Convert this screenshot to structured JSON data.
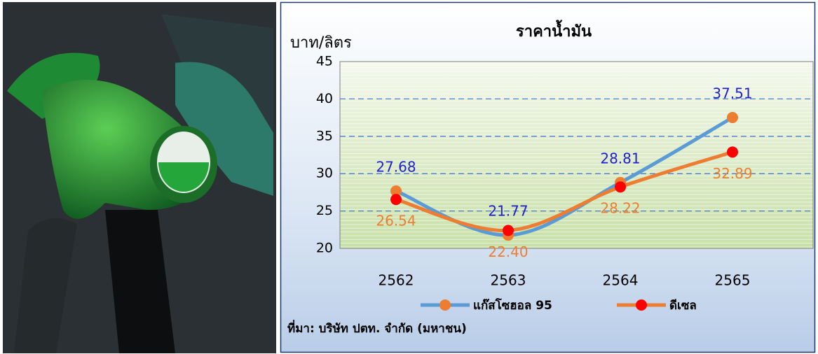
{
  "chart_data": {
    "type": "line",
    "title": "ราคาน้ำมัน",
    "y_label": "บาท/ลิตร",
    "categories": [
      "2562",
      "2563",
      "2564",
      "2565"
    ],
    "series": [
      {
        "name": "แก๊สโซฮอล 95",
        "color": "#5b9bd5",
        "marker_color": "#ed7d31",
        "label_color": "#1f1fd0",
        "values": [
          27.68,
          21.77,
          28.81,
          37.51
        ]
      },
      {
        "name": "ดีเซล",
        "color": "#ed7d31",
        "marker_color": "#ff0000",
        "label_color": "#ed7d31",
        "values": [
          26.54,
          22.4,
          28.22,
          32.89
        ],
        "value_labels": [
          "26.54",
          "22.40",
          "28.22",
          "32.89"
        ]
      }
    ],
    "ylim": [
      20,
      45
    ],
    "yticks": [
      20,
      25,
      30,
      35,
      40,
      45
    ],
    "grid": true,
    "source": "ที่มา: บริษัท ปตท. จำกัด (มหาชน)"
  }
}
